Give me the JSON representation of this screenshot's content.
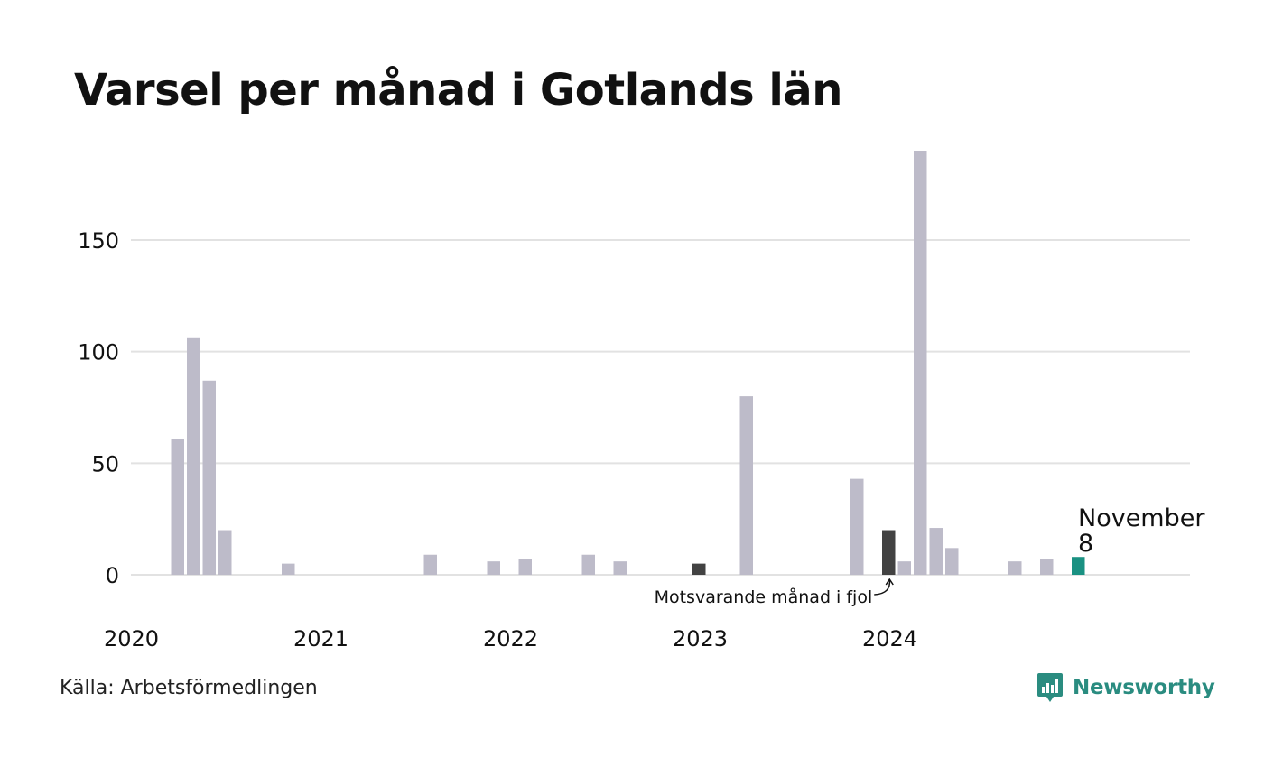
{
  "chart_data": {
    "type": "bar",
    "title": "Varsel per månad i Gotlands län",
    "xlabel": "",
    "ylabel": "",
    "ylim": [
      0,
      190
    ],
    "y_ticks": [
      0,
      50,
      100,
      150
    ],
    "x_tick_labels": [
      "2020",
      "2021",
      "2022",
      "2023",
      "2024"
    ],
    "grid": true,
    "categories": [
      "2020-01",
      "2020-02",
      "2020-03",
      "2020-04",
      "2020-05",
      "2020-06",
      "2020-07",
      "2020-08",
      "2020-09",
      "2020-10",
      "2020-11",
      "2020-12",
      "2021-01",
      "2021-02",
      "2021-03",
      "2021-04",
      "2021-05",
      "2021-06",
      "2021-07",
      "2021-08",
      "2021-09",
      "2021-10",
      "2021-11",
      "2021-12",
      "2022-01",
      "2022-02",
      "2022-03",
      "2022-04",
      "2022-05",
      "2022-06",
      "2022-07",
      "2022-08",
      "2022-09",
      "2022-10",
      "2022-11",
      "2022-12",
      "2023-01",
      "2023-02",
      "2023-03",
      "2023-04",
      "2023-05",
      "2023-06",
      "2023-07",
      "2023-08",
      "2023-09",
      "2023-10",
      "2023-11",
      "2023-12",
      "2024-01",
      "2024-02",
      "2024-03",
      "2024-04",
      "2024-05",
      "2024-06",
      "2024-07",
      "2024-08",
      "2024-09",
      "2024-10",
      "2024-11"
    ],
    "values": [
      0,
      61,
      106,
      87,
      20,
      0,
      0,
      0,
      5,
      0,
      0,
      0,
      0,
      0,
      0,
      0,
      0,
      9,
      0,
      0,
      0,
      6,
      0,
      7,
      0,
      0,
      0,
      9,
      0,
      6,
      0,
      0,
      0,
      0,
      5,
      0,
      0,
      80,
      0,
      0,
      0,
      0,
      0,
      0,
      43,
      0,
      20,
      6,
      190,
      21,
      12,
      0,
      0,
      0,
      6,
      0,
      7,
      0,
      8
    ],
    "highlight": {
      "current": {
        "category": "2024-11",
        "label": "November",
        "value": 8,
        "color": "#1a9182"
      },
      "previous_year": {
        "category": "2023-11",
        "label": "Motsvarande månad i fjol",
        "value": 20,
        "color": "#424242"
      },
      "previous_two_years": {
        "category": "2022-11",
        "value": 5,
        "color": "#424242"
      }
    },
    "colors": {
      "default_bar": "#bdbbc9",
      "gridline": "#e2e2e2",
      "axis_text": "#111111"
    }
  },
  "footer": {
    "source": "Källa: Arbetsförmedlingen",
    "brand": "Newsworthy",
    "brand_color": "#2a8c80"
  }
}
